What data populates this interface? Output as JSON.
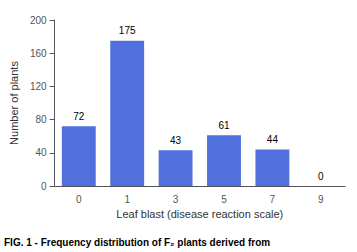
{
  "chart_data": {
    "type": "bar",
    "categories": [
      0,
      1,
      3,
      5,
      7,
      9
    ],
    "values": [
      72,
      175,
      43,
      61,
      44,
      0
    ],
    "xlabel": "Leaf blast (disease reaction scale)",
    "ylabel": "Number of plants",
    "ylim": [
      0,
      200
    ],
    "yticks": [
      0,
      40,
      80,
      120,
      160,
      200
    ],
    "data_labels": true,
    "grid": false,
    "caption": "FIG. 1 - Frequency distribution of F₂ plants derived from"
  }
}
